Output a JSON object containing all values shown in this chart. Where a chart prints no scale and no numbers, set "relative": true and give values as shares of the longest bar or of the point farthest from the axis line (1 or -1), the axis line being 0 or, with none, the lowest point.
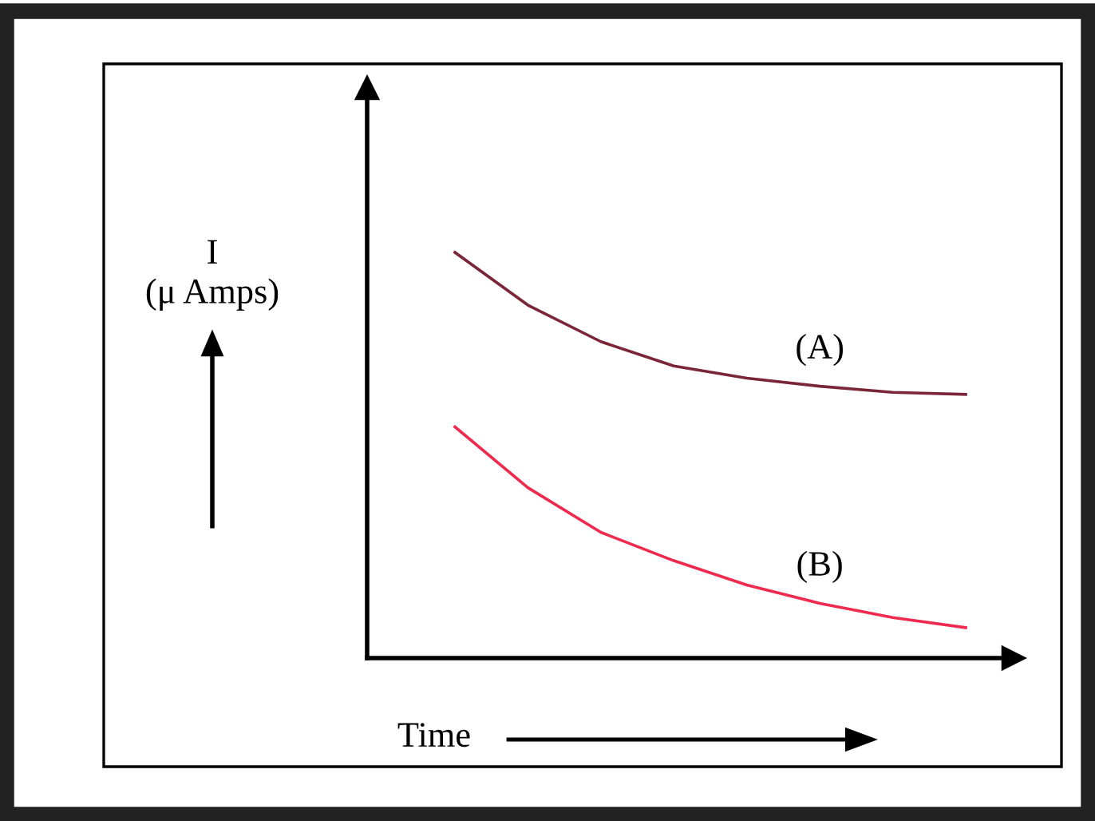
{
  "chart_data": {
    "type": "line",
    "relative": true,
    "xlabel": "Time",
    "ylabel": "I\n(μ Amps)",
    "categories": [
      null,
      null,
      null,
      null,
      null,
      null,
      null,
      null
    ],
    "series": [
      {
        "name": "(A)",
        "color": "#7a2638",
        "values": [
          1,
          0.87,
          0.78,
          0.72,
          0.69,
          0.67,
          0.655,
          0.65
        ]
      },
      {
        "name": "(B)",
        "color": "#ee2a4e",
        "values": [
          0.57,
          0.42,
          0.31,
          0.24,
          0.18,
          0.135,
          0.1,
          0.075
        ]
      }
    ],
    "legend": false,
    "marker": "none",
    "line_style": "solid"
  }
}
